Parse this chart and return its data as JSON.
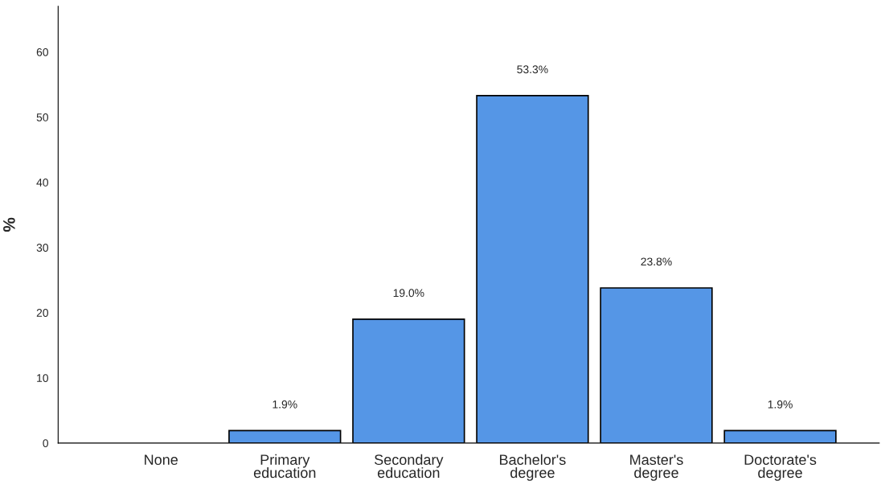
{
  "chart_data": {
    "type": "bar",
    "ylabel": "%",
    "categories": [
      "None",
      "Primary\neducation",
      "Secondary\neducation",
      "Bachelor's\ndegree",
      "Master's\ndegree",
      "Doctorate's\ndegree"
    ],
    "values": [
      0,
      1.9,
      19.0,
      53.3,
      23.8,
      1.9
    ],
    "value_labels": [
      null,
      "1.9%",
      "19.0%",
      "53.3%",
      "23.8%",
      "1.9%"
    ],
    "color": "#5596e6",
    "ylim": [
      0,
      67
    ],
    "yticks": [
      0,
      10,
      20,
      30,
      40,
      50,
      60
    ],
    "grid": false,
    "legend": false
  }
}
